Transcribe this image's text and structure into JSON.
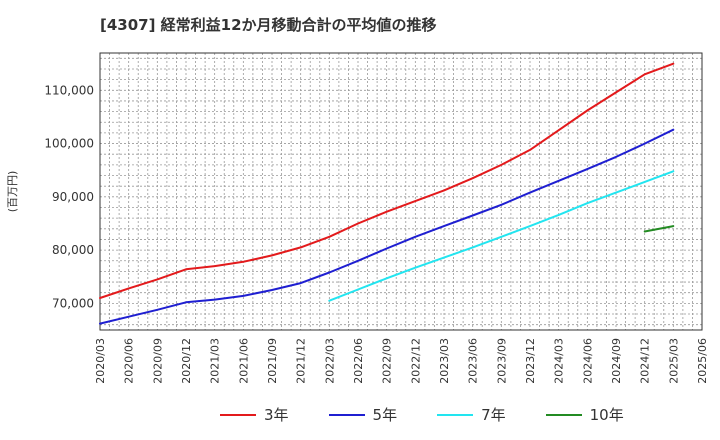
{
  "title": "[4307]  経常利益12か月移動合計の平均値の推移",
  "chart_data": {
    "type": "line",
    "title": "[4307]  経常利益12か月移動合計の平均値の推移",
    "xlabel": "",
    "ylabel": "(百万円)",
    "ylim": [
      65000,
      117000
    ],
    "yticks": [
      70000,
      80000,
      90000,
      100000,
      110000
    ],
    "ytick_labels": [
      "70,000",
      "80,000",
      "90,000",
      "100,000",
      "110,000"
    ],
    "xticks": [
      "2020/03",
      "2020/06",
      "2020/09",
      "2020/12",
      "2021/03",
      "2021/06",
      "2021/09",
      "2021/12",
      "2022/03",
      "2022/06",
      "2022/09",
      "2022/12",
      "2023/03",
      "2023/06",
      "2023/09",
      "2023/12",
      "2024/03",
      "2024/06",
      "2024/09",
      "2024/12",
      "2025/03",
      "2025/06"
    ],
    "grid": true,
    "legend_position": "bottom",
    "series": [
      {
        "name": "3年",
        "color": "#e31a1c",
        "x": [
          "2020/03",
          "2020/06",
          "2020/09",
          "2020/12",
          "2021/03",
          "2021/06",
          "2021/09",
          "2021/12",
          "2022/03",
          "2022/06",
          "2022/09",
          "2022/12",
          "2023/03",
          "2023/06",
          "2023/09",
          "2023/12",
          "2024/03",
          "2024/06",
          "2024/09",
          "2024/12",
          "2025/03"
        ],
        "values": [
          71000,
          72800,
          74500,
          76400,
          77000,
          77800,
          79000,
          80500,
          82500,
          85000,
          87200,
          89200,
          91200,
          93500,
          96000,
          98800,
          102500,
          106200,
          109600,
          113000,
          115000
        ]
      },
      {
        "name": "5年",
        "color": "#1f1fd1",
        "x": [
          "2020/03",
          "2020/06",
          "2020/09",
          "2020/12",
          "2021/03",
          "2021/06",
          "2021/09",
          "2021/12",
          "2022/03",
          "2022/06",
          "2022/09",
          "2022/12",
          "2023/03",
          "2023/06",
          "2023/09",
          "2023/12",
          "2024/03",
          "2024/06",
          "2024/09",
          "2024/12",
          "2025/03"
        ],
        "values": [
          66200,
          67500,
          68800,
          70200,
          70700,
          71400,
          72500,
          73800,
          75800,
          78000,
          80300,
          82500,
          84500,
          86500,
          88500,
          90800,
          93000,
          95200,
          97500,
          100000,
          102600
        ]
      },
      {
        "name": "7年",
        "color": "#22e5f0",
        "x": [
          "2022/03",
          "2022/06",
          "2022/09",
          "2022/12",
          "2023/03",
          "2023/06",
          "2023/09",
          "2023/12",
          "2024/03",
          "2024/06",
          "2024/09",
          "2024/12",
          "2025/03"
        ],
        "values": [
          70500,
          72600,
          74700,
          76700,
          78600,
          80500,
          82500,
          84500,
          86600,
          88800,
          90800,
          92800,
          94800
        ]
      },
      {
        "name": "10年",
        "color": "#238b23",
        "x": [
          "2024/12",
          "2025/03"
        ],
        "values": [
          83500,
          84500
        ]
      }
    ]
  }
}
